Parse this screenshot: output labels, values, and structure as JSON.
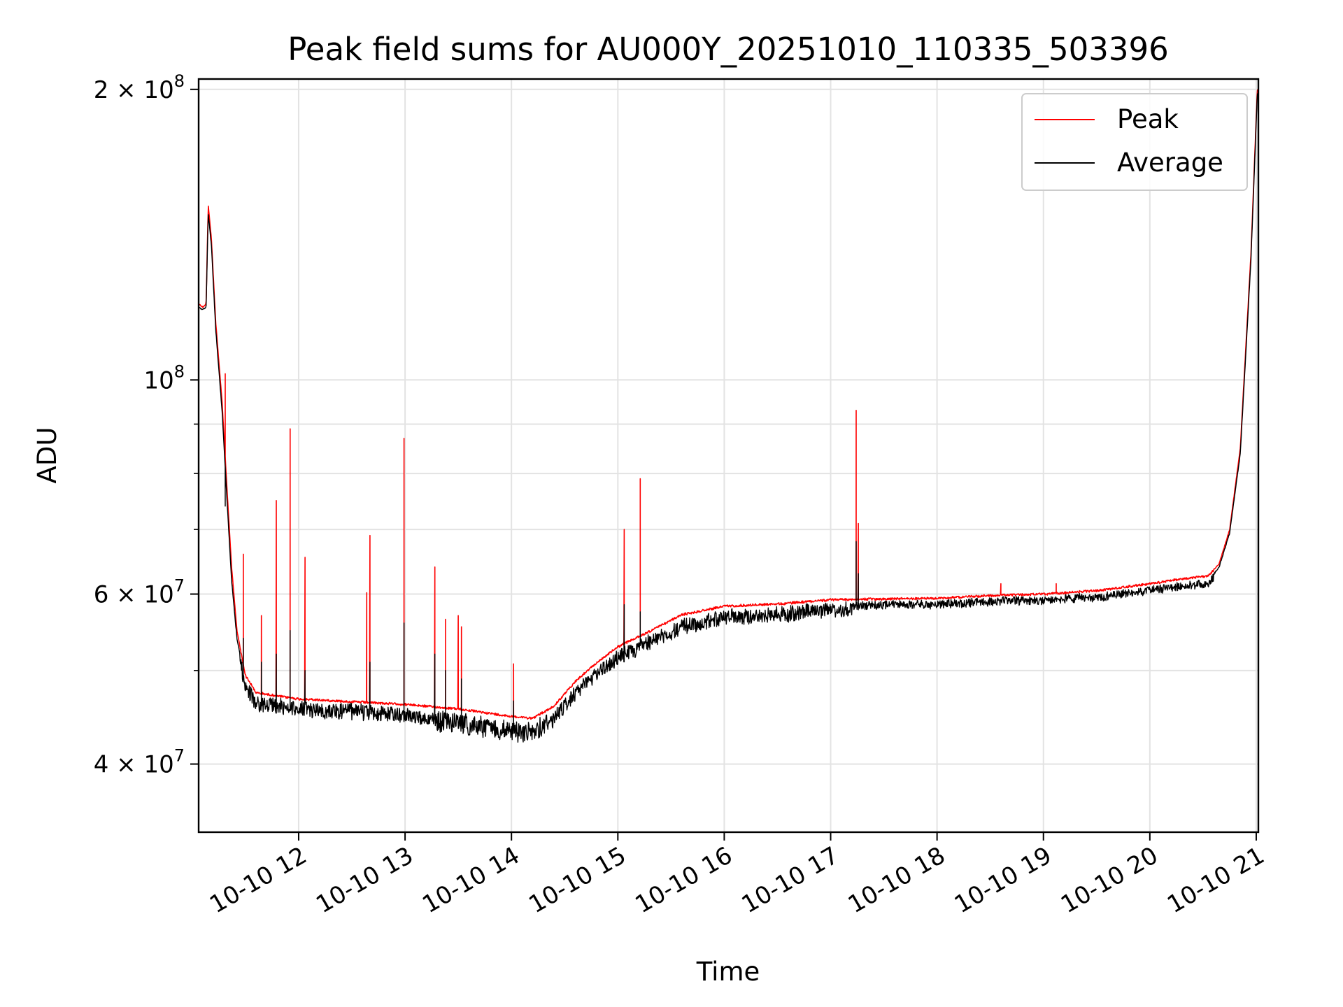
{
  "chart_data": {
    "type": "line",
    "title": "Peak field sums for AU000Y_20251010_110335_503396",
    "xlabel": "Time",
    "ylabel": "ADU",
    "yscale": "log",
    "ylim": [
      34000000,
      205000000
    ],
    "xlim_hours": [
      11.06,
      21.02
    ],
    "grid": true,
    "legend_position": "top-right",
    "x_ticks": [
      {
        "value": 12,
        "label": "10-10 12"
      },
      {
        "value": 13,
        "label": "10-10 13"
      },
      {
        "value": 14,
        "label": "10-10 14"
      },
      {
        "value": 15,
        "label": "10-10 15"
      },
      {
        "value": 16,
        "label": "10-10 16"
      },
      {
        "value": 17,
        "label": "10-10 17"
      },
      {
        "value": 18,
        "label": "10-10 18"
      },
      {
        "value": 19,
        "label": "10-10 19"
      },
      {
        "value": 20,
        "label": "10-10 20"
      },
      {
        "value": 21,
        "label": "10-10 21"
      }
    ],
    "y_major_ticks": [
      {
        "value": 40000000,
        "mantissa": "4",
        "exp": "7"
      },
      {
        "value": 60000000,
        "mantissa": "6",
        "exp": "7"
      },
      {
        "value": 100000000,
        "mantissa": "",
        "exp": "8"
      },
      {
        "value": 200000000,
        "mantissa": "2",
        "exp": "8"
      }
    ],
    "y_minor_ticks": [
      50000000,
      70000000,
      80000000,
      90000000
    ],
    "series": [
      {
        "name": "Peak",
        "color": "#ff0000",
        "baseline": [
          [
            11.06,
            120000000
          ],
          [
            11.1,
            119000000
          ],
          [
            11.13,
            120000000
          ],
          [
            11.15,
            152000000
          ],
          [
            11.18,
            140000000
          ],
          [
            11.22,
            115000000
          ],
          [
            11.28,
            95000000
          ],
          [
            11.33,
            76000000
          ],
          [
            11.37,
            64000000
          ],
          [
            11.42,
            55000000
          ],
          [
            11.5,
            49500000
          ],
          [
            11.6,
            47500000
          ],
          [
            12.0,
            46800000
          ],
          [
            12.5,
            46500000
          ],
          [
            13.0,
            46200000
          ],
          [
            13.5,
            45700000
          ],
          [
            14.0,
            44900000
          ],
          [
            14.2,
            44700000
          ],
          [
            14.4,
            46000000
          ],
          [
            14.6,
            48800000
          ],
          [
            14.8,
            51000000
          ],
          [
            15.0,
            53000000
          ],
          [
            15.3,
            55000000
          ],
          [
            15.6,
            57200000
          ],
          [
            16.0,
            58400000
          ],
          [
            16.5,
            58700000
          ],
          [
            17.0,
            59300000
          ],
          [
            17.5,
            59400000
          ],
          [
            18.0,
            59500000
          ],
          [
            18.5,
            59900000
          ],
          [
            19.0,
            60100000
          ],
          [
            19.5,
            60600000
          ],
          [
            20.0,
            61600000
          ],
          [
            20.3,
            62300000
          ],
          [
            20.55,
            62800000
          ],
          [
            20.65,
            64500000
          ],
          [
            20.75,
            70000000
          ],
          [
            20.85,
            85000000
          ],
          [
            20.95,
            135000000
          ],
          [
            21.01,
            200000000
          ]
        ],
        "spikes": [
          [
            11.31,
            101500000
          ],
          [
            11.48,
            66000000
          ],
          [
            11.65,
            57000000
          ],
          [
            11.79,
            75000000
          ],
          [
            11.92,
            89000000
          ],
          [
            12.06,
            65500000
          ],
          [
            12.64,
            60200000
          ],
          [
            12.67,
            69000000
          ],
          [
            12.99,
            87000000
          ],
          [
            13.28,
            64000000
          ],
          [
            13.38,
            56500000
          ],
          [
            13.5,
            57000000
          ],
          [
            13.53,
            55500000
          ],
          [
            14.02,
            50800000
          ],
          [
            15.06,
            70000000
          ],
          [
            15.21,
            79000000
          ],
          [
            17.24,
            93000000
          ],
          [
            17.26,
            71000000
          ],
          [
            18.6,
            61500000
          ],
          [
            19.12,
            61500000
          ]
        ]
      },
      {
        "name": "Average",
        "color": "#000000",
        "baseline": [
          [
            11.06,
            119000000
          ],
          [
            11.1,
            118500000
          ],
          [
            11.13,
            119000000
          ],
          [
            11.15,
            149000000
          ],
          [
            11.18,
            138000000
          ],
          [
            11.22,
            113000000
          ],
          [
            11.28,
            93000000
          ],
          [
            11.33,
            74000000
          ],
          [
            11.37,
            62000000
          ],
          [
            11.42,
            54000000
          ],
          [
            11.5,
            48800000
          ],
          [
            11.6,
            46800000
          ],
          [
            12.0,
            46300000
          ],
          [
            12.5,
            46000000
          ],
          [
            13.0,
            45600000
          ],
          [
            13.5,
            44900000
          ],
          [
            14.0,
            44000000
          ],
          [
            14.2,
            44000000
          ],
          [
            14.4,
            45300000
          ],
          [
            14.6,
            48000000
          ],
          [
            14.8,
            50300000
          ],
          [
            15.0,
            52300000
          ],
          [
            15.3,
            54300000
          ],
          [
            15.6,
            56300000
          ],
          [
            16.0,
            57600000
          ],
          [
            16.5,
            57900000
          ],
          [
            17.0,
            58700000
          ],
          [
            17.5,
            58900000
          ],
          [
            18.0,
            59000000
          ],
          [
            18.5,
            59400000
          ],
          [
            19.0,
            59600000
          ],
          [
            19.5,
            60000000
          ],
          [
            20.0,
            61000000
          ],
          [
            20.3,
            61600000
          ],
          [
            20.55,
            62000000
          ],
          [
            20.65,
            64000000
          ],
          [
            20.75,
            69500000
          ],
          [
            20.85,
            84000000
          ],
          [
            20.95,
            133000000
          ],
          [
            21.01,
            198000000
          ]
        ],
        "spikes": [
          [
            11.31,
            74000000
          ],
          [
            11.48,
            54000000
          ],
          [
            11.65,
            51000000
          ],
          [
            11.79,
            52000000
          ],
          [
            11.92,
            55000000
          ],
          [
            12.06,
            50000000
          ],
          [
            12.67,
            51000000
          ],
          [
            12.99,
            56000000
          ],
          [
            13.28,
            52000000
          ],
          [
            13.38,
            50000000
          ],
          [
            13.53,
            49000000
          ],
          [
            14.02,
            46500000
          ],
          [
            15.06,
            58500000
          ],
          [
            15.21,
            57500000
          ],
          [
            17.24,
            68000000
          ],
          [
            17.26,
            63000000
          ]
        ]
      }
    ]
  }
}
